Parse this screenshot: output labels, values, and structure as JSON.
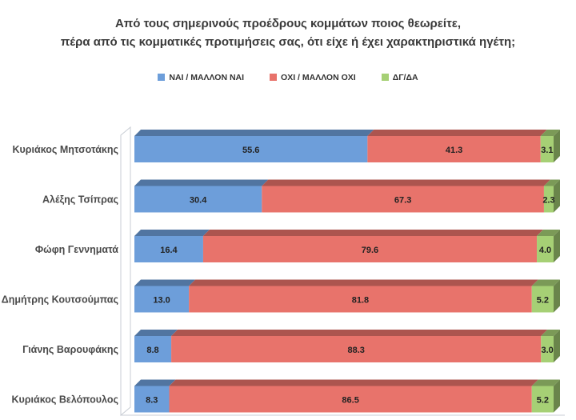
{
  "title": {
    "line1": "Από τους σημερινούς προέδρους κομμάτων ποιος θεωρείτε,",
    "line2": "πέρα από τις κομματικές προτιμήσεις σας, ότι είχε ή έχει χαρακτηριστικά ηγέτη;"
  },
  "chart_data": {
    "type": "bar",
    "orientation": "horizontal",
    "stacked": true,
    "effect": "3d",
    "legend_position": "top",
    "xlim": [
      0,
      100
    ],
    "grid": false,
    "value_labels": true,
    "categories": [
      "Κυριάκος Μητσοτάκης",
      "Αλέξης Τσίπρας",
      "Φώφη Γεννηματά",
      "Δημήτρης Κουτσούμπας",
      "Γιάνης Βαρουφάκης",
      "Κυριάκος Βελόπουλος"
    ],
    "series": [
      {
        "name": "ΝΑΙ / ΜΑΛΛΟΝ ΝΑΙ",
        "color": "#6d9eda",
        "values": [
          55.6,
          30.4,
          16.4,
          13.0,
          8.8,
          8.3
        ]
      },
      {
        "name": "ΟΧΙ / ΜΑΛΛΟΝ ΟΧΙ",
        "color": "#e8736b",
        "values": [
          41.3,
          67.3,
          79.6,
          81.8,
          88.3,
          86.5
        ]
      },
      {
        "name": "ΔΓ/ΔΑ",
        "color": "#a6d075",
        "values": [
          3.1,
          2.3,
          4.0,
          5.2,
          3.0,
          5.2
        ]
      }
    ],
    "wall_color": "#c8cdd4",
    "label_color": "#222222",
    "category_color": "#4a4a4a"
  }
}
